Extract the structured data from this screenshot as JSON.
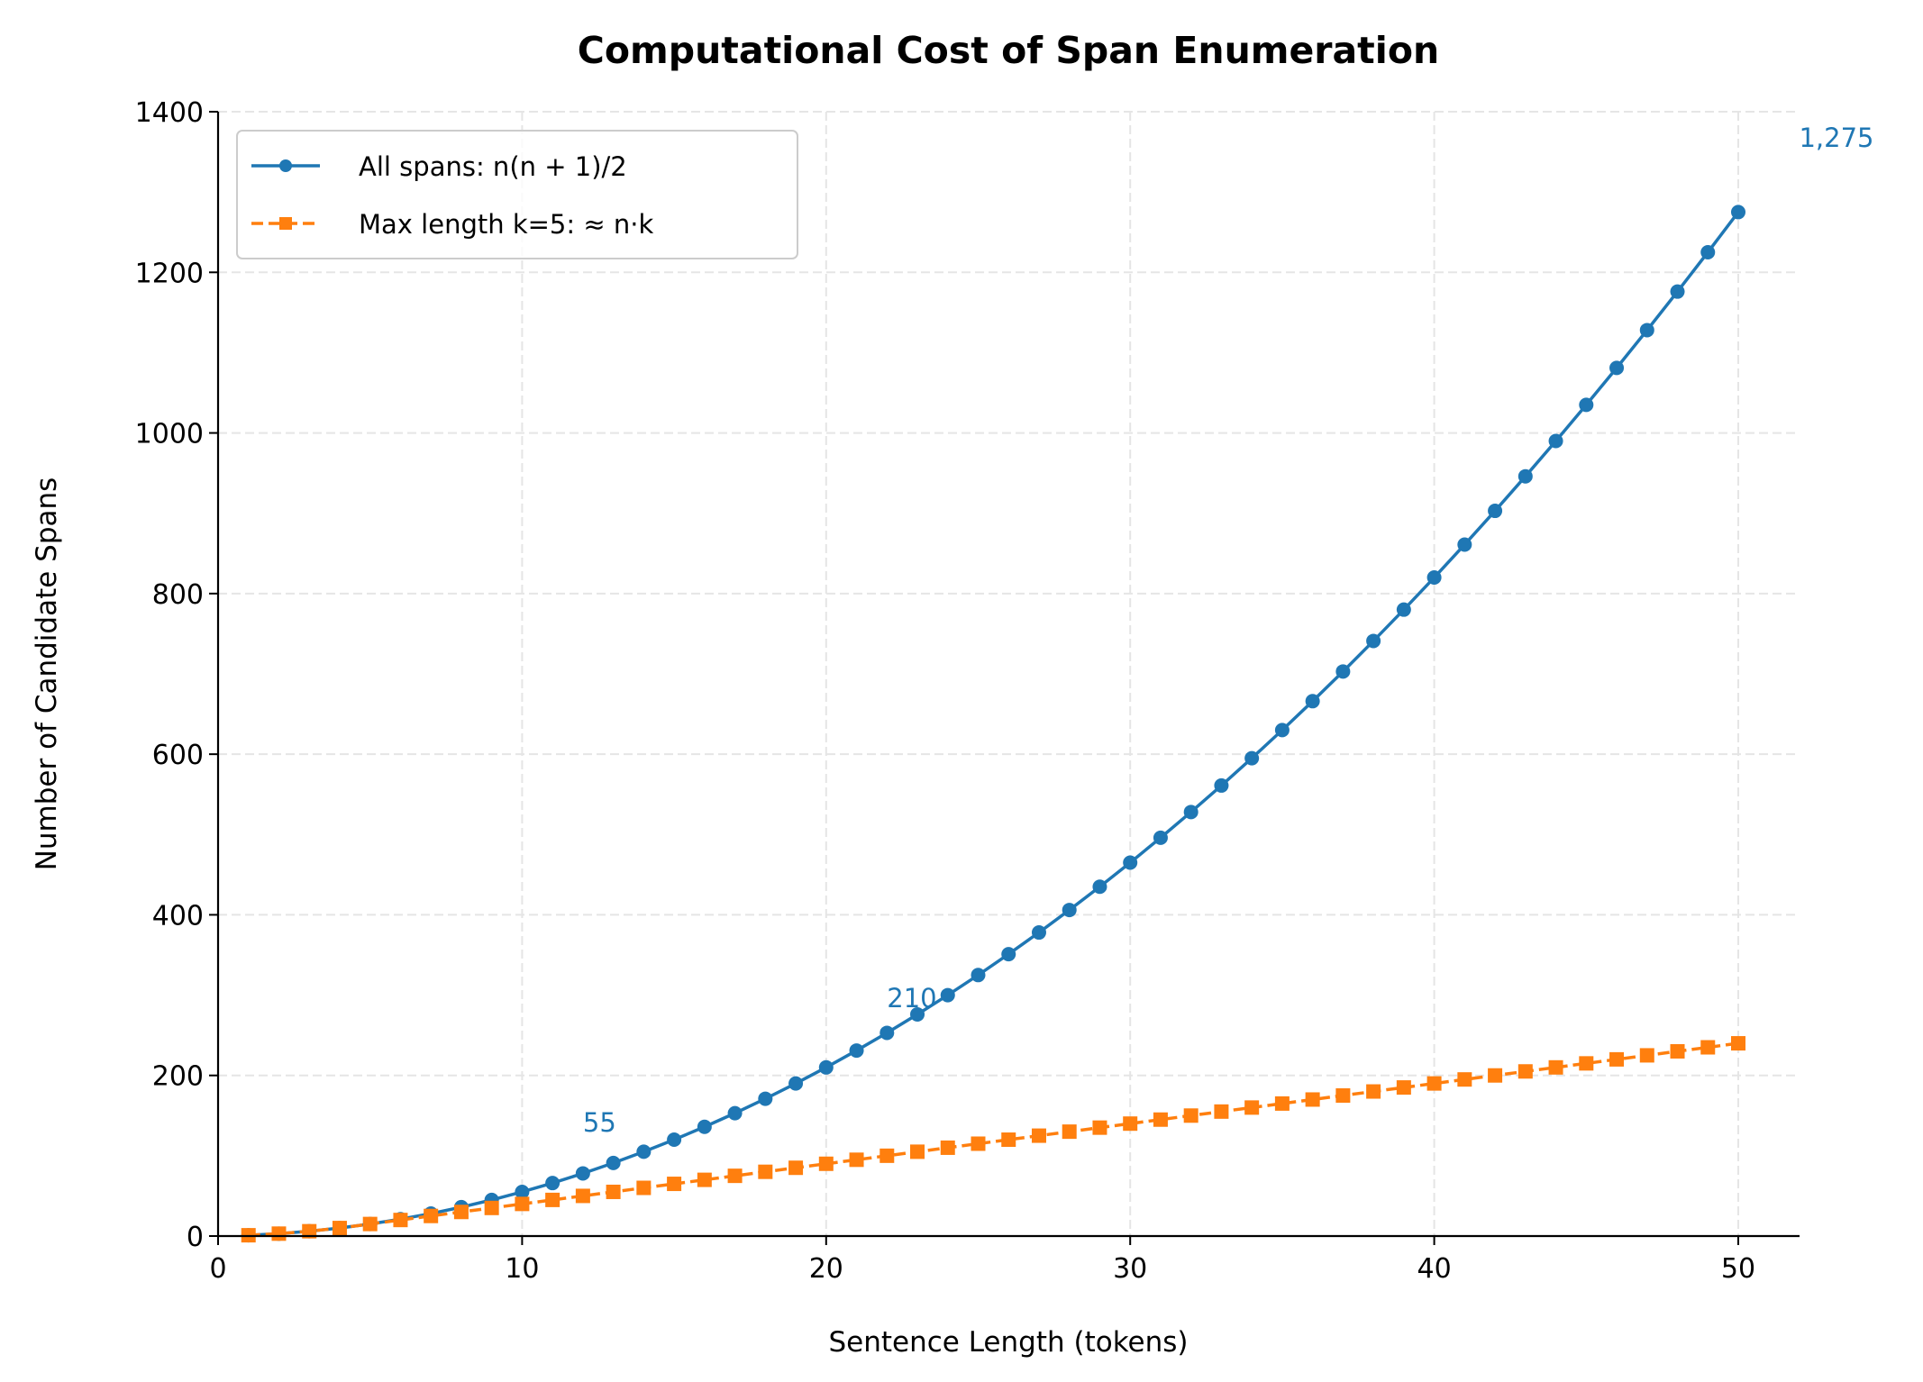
{
  "chart_data": {
    "type": "line",
    "title": "Computational Cost of Span Enumeration",
    "xlabel": "Sentence Length (tokens)",
    "ylabel": "Number of Candidate Spans",
    "xlim": [
      0,
      52
    ],
    "ylim": [
      0,
      1400
    ],
    "xticks": [
      0,
      10,
      20,
      30,
      40,
      50
    ],
    "yticks": [
      0,
      200,
      400,
      600,
      800,
      1000,
      1200,
      1400
    ],
    "grid": true,
    "legend_position": "top-left",
    "x": [
      1,
      2,
      3,
      4,
      5,
      6,
      7,
      8,
      9,
      10,
      11,
      12,
      13,
      14,
      15,
      16,
      17,
      18,
      19,
      20,
      21,
      22,
      23,
      24,
      25,
      26,
      27,
      28,
      29,
      30,
      31,
      32,
      33,
      34,
      35,
      36,
      37,
      38,
      39,
      40,
      41,
      42,
      43,
      44,
      45,
      46,
      47,
      48,
      49,
      50
    ],
    "series": [
      {
        "name": "All spans: n(n + 1)/2",
        "color": "#1f77b4",
        "marker": "circle",
        "linestyle": "solid",
        "values": [
          1,
          3,
          6,
          10,
          15,
          21,
          28,
          36,
          45,
          55,
          66,
          78,
          91,
          105,
          120,
          136,
          153,
          171,
          190,
          210,
          231,
          253,
          276,
          300,
          325,
          351,
          378,
          406,
          435,
          465,
          496,
          528,
          561,
          595,
          630,
          666,
          703,
          741,
          780,
          820,
          861,
          903,
          946,
          990,
          1035,
          1081,
          1128,
          1176,
          1225,
          1275
        ]
      },
      {
        "name": "Max length k=5: ≈ n·k",
        "color": "#ff7f0e",
        "marker": "square",
        "linestyle": "dashed",
        "values": [
          1,
          3,
          6,
          10,
          15,
          20,
          25,
          30,
          35,
          40,
          45,
          50,
          55,
          60,
          65,
          70,
          75,
          80,
          85,
          90,
          95,
          100,
          105,
          110,
          115,
          120,
          125,
          130,
          135,
          140,
          145,
          150,
          155,
          160,
          165,
          170,
          175,
          180,
          185,
          190,
          195,
          200,
          205,
          210,
          215,
          220,
          225,
          230,
          235,
          240
        ]
      }
    ],
    "annotations": [
      {
        "text": "55",
        "x": 12,
        "y": 130,
        "color": "#1f77b4"
      },
      {
        "text": "210",
        "x": 22,
        "y": 285,
        "color": "#1f77b4"
      },
      {
        "text": "1,275",
        "x": 52,
        "y": 1356,
        "color": "#1f77b4"
      }
    ]
  }
}
